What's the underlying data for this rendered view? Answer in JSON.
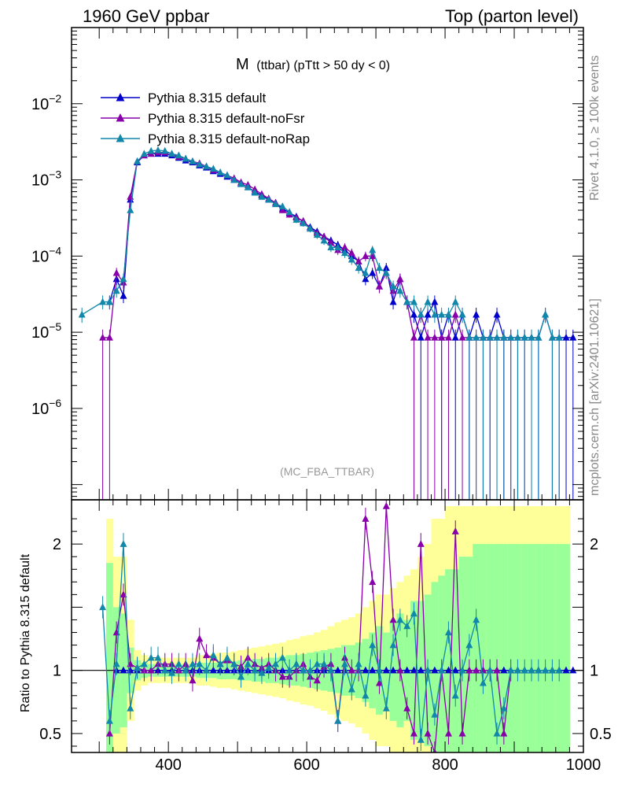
{
  "header": {
    "left": "1960 GeV ppbar",
    "right": "Top (parton level)"
  },
  "side_labels": {
    "rivet": "Rivet 4.1.0, ≥ 100k events",
    "mcplots": "mcplots.cern.ch [arXiv:2401.10621]"
  },
  "chart_data": {
    "type": "line",
    "title_main": "M",
    "title_sub": "(ttbar) (pTtt > 50 dy < 0)",
    "analysis_tag": "(MC_FBA_TTBAR)",
    "xlabel": "",
    "xlim": [
      260,
      1000
    ],
    "x_ticks": [
      "400",
      "600",
      "800",
      "1000"
    ],
    "main_ylim_log10": [
      -7.2,
      -1.0
    ],
    "main_y_ticks": [
      {
        "base": "10",
        "exp": "−2",
        "log": -2
      },
      {
        "base": "10",
        "exp": "−3",
        "log": -3
      },
      {
        "base": "10",
        "exp": "−4",
        "log": -4
      },
      {
        "base": "10",
        "exp": "−5",
        "log": -5
      },
      {
        "base": "10",
        "exp": "−6",
        "log": -6
      }
    ],
    "ratio_ylabel": "Ratio to Pythia 8.315 default",
    "ratio_ylim": [
      0.35,
      2.35
    ],
    "ratio_y_ticks": [
      "2",
      "1",
      "0.5"
    ],
    "series": [
      {
        "name": "Pythia 8.315 default",
        "color": "#0000cc",
        "x": [
          305,
          315,
          325,
          335,
          345,
          355,
          365,
          375,
          385,
          395,
          405,
          415,
          425,
          435,
          445,
          455,
          465,
          475,
          485,
          495,
          505,
          515,
          525,
          535,
          545,
          555,
          565,
          575,
          585,
          595,
          605,
          615,
          625,
          635,
          645,
          655,
          665,
          675,
          685,
          695,
          705,
          715,
          725,
          735,
          745,
          755,
          765,
          775,
          785,
          795,
          805,
          815,
          825,
          835,
          845,
          855,
          865,
          875,
          885,
          895,
          905,
          915,
          925,
          935,
          945,
          955,
          965,
          975,
          985
        ],
        "y": [
          null,
          2.5e-05,
          5e-05,
          3e-05,
          0.00055,
          0.0017,
          0.0021,
          0.0022,
          0.0022,
          0.0022,
          0.0021,
          0.00195,
          0.0018,
          0.0017,
          0.00155,
          0.00145,
          0.0013,
          0.0012,
          0.0011,
          0.001,
          0.0009,
          0.0008,
          0.0007,
          0.00063,
          0.00055,
          0.0005,
          0.00042,
          0.00037,
          0.00033,
          0.00028,
          0.00024,
          0.00021,
          0.00018,
          0.00016,
          0.00014,
          0.00012,
          0.0001,
          8.5e-05,
          5e-05,
          6e-05,
          4e-05,
          7e-05,
          2.5e-05,
          5e-05,
          2.5e-05,
          1.7e-05,
          8.5e-06,
          1.7e-05,
          2.5e-05,
          8.5e-06,
          1.7e-05,
          8.5e-06,
          1.7e-05,
          8.5e-06,
          1.7e-05,
          8.5e-06,
          8.5e-06,
          1.7e-05,
          8.5e-06,
          8.5e-06,
          8.5e-06,
          8.5e-06,
          8.5e-06,
          8.5e-06,
          1.7e-05,
          8.5e-06,
          8.5e-06,
          8.5e-06,
          8.5e-06
        ],
        "ratio": [
          null,
          null,
          1.0,
          1.0,
          1.0,
          1.0,
          1.0,
          1.0,
          1.0,
          1.0,
          1.0,
          1.0,
          1.0,
          1.0,
          1.0,
          1.0,
          1.0,
          1.0,
          1.0,
          1.0,
          1.0,
          1.0,
          1.0,
          1.0,
          1.0,
          1.0,
          1.0,
          1.0,
          1.0,
          1.0,
          1.0,
          1.0,
          1.0,
          1.0,
          1.0,
          1.0,
          1.0,
          1.0,
          1.0,
          1.0,
          1.0,
          1.0,
          1.0,
          1.0,
          1.0,
          1.0,
          1.0,
          1.0,
          1.0,
          1.0,
          1.0,
          1.0,
          1.0,
          1.0,
          1.0,
          1.0,
          1.0,
          1.0,
          1.0,
          1.0,
          1.0,
          1.0,
          1.0,
          1.0,
          1.0,
          1.0,
          1.0,
          1.0,
          1.0
        ]
      },
      {
        "name": "Pythia 8.315 default-noFsr",
        "color": "#8800aa",
        "x": [
          305,
          315,
          325,
          335,
          345,
          355,
          365,
          375,
          385,
          395,
          405,
          415,
          425,
          435,
          445,
          455,
          465,
          475,
          485,
          495,
          505,
          515,
          525,
          535,
          545,
          555,
          565,
          575,
          585,
          595,
          605,
          615,
          625,
          635,
          645,
          655,
          665,
          675,
          685,
          695,
          705,
          715,
          725,
          735,
          745,
          755,
          765,
          775,
          785,
          795,
          805,
          815,
          825,
          835,
          845,
          855,
          865,
          875,
          885,
          895
        ],
        "y": [
          8.5e-06,
          8.5e-06,
          6e-05,
          4.5e-05,
          0.0006,
          0.00175,
          0.0021,
          0.0022,
          0.0023,
          0.0023,
          0.0022,
          0.002,
          0.0019,
          0.00175,
          0.00165,
          0.0015,
          0.00135,
          0.00125,
          0.00115,
          0.00105,
          0.00093,
          0.00086,
          0.00075,
          0.00065,
          0.00057,
          0.0005,
          0.0004,
          0.00035,
          0.00032,
          0.00029,
          0.00023,
          0.0002,
          0.00018,
          0.00015,
          0.00012,
          0.00013,
          0.00011,
          8.5e-05,
          0.0001,
          0.0001,
          4e-05,
          6e-05,
          3.5e-05,
          5e-05,
          2.5e-05,
          8.5e-06,
          1.7e-05,
          8.5e-06,
          8.5e-06,
          8.5e-06,
          8.5e-06,
          1.7e-05,
          8.5e-06,
          8.5e-06,
          8.5e-06,
          8.5e-06,
          8.5e-06,
          8.5e-06,
          8.5e-06,
          8.5e-06
        ],
        "ratio": [
          null,
          0.5,
          1.3,
          1.6,
          1.05,
          1.02,
          1.0,
          1.0,
          1.05,
          1.05,
          1.05,
          1.0,
          1.05,
          0.92,
          1.25,
          1.12,
          1.1,
          1.05,
          1.08,
          1.05,
          1.03,
          1.1,
          1.05,
          1.02,
          1.05,
          1.0,
          0.95,
          0.95,
          1.0,
          1.05,
          0.95,
          0.92,
          1.03,
          1.05,
          0.6,
          1.1,
          1.0,
          1.0,
          2.2,
          1.7,
          0.9,
          2.3,
          1.4,
          1.0,
          0.7,
          0.5,
          2.0,
          0.5,
          0.35,
          1.0,
          0.5,
          2.1,
          0.5,
          1.0,
          1.0,
          1.0,
          1.0,
          1.0,
          0.5,
          1.0
        ]
      },
      {
        "name": "Pythia 8.315 default-noRap",
        "color": "#1188aa",
        "x": [
          275,
          305,
          315,
          325,
          335,
          345,
          355,
          365,
          375,
          385,
          395,
          405,
          415,
          425,
          435,
          445,
          455,
          465,
          475,
          485,
          495,
          505,
          515,
          525,
          535,
          545,
          555,
          565,
          575,
          585,
          595,
          605,
          615,
          625,
          635,
          645,
          655,
          665,
          675,
          685,
          695,
          705,
          715,
          725,
          735,
          745,
          755,
          765,
          775,
          785,
          795,
          805,
          815,
          825,
          835,
          845,
          855,
          865,
          875,
          885,
          895,
          905,
          915,
          925,
          935,
          945,
          955,
          965
        ],
        "y": [
          1.7e-05,
          2.5e-05,
          2.5e-05,
          3.5e-05,
          5e-05,
          0.0004,
          0.00175,
          0.0022,
          0.0024,
          0.00245,
          0.0024,
          0.0022,
          0.0021,
          0.0019,
          0.00175,
          0.0016,
          0.0015,
          0.0014,
          0.00125,
          0.00115,
          0.001,
          0.00088,
          0.0008,
          0.00068,
          0.0006,
          0.00055,
          0.00048,
          0.00045,
          0.00038,
          0.0003,
          0.00027,
          0.00023,
          0.00019,
          0.00016,
          0.00013,
          0.00013,
          0.00011,
          9e-05,
          7e-05,
          6e-05,
          0.00012,
          7e-05,
          6e-05,
          4e-05,
          3.5e-05,
          2.5e-05,
          2.5e-05,
          1.7e-05,
          2.5e-05,
          1.7e-05,
          1.7e-05,
          1.7e-05,
          2.5e-05,
          1.7e-05,
          8.5e-06,
          8.5e-06,
          8.5e-06,
          8.5e-06,
          8.5e-06,
          8.5e-06,
          8.5e-06,
          8.5e-06,
          8.5e-06,
          8.5e-06,
          8.5e-06,
          1.7e-05,
          8.5e-06,
          8.5e-06
        ],
        "ratio": [
          null,
          1.5,
          0.6,
          1.05,
          2.0,
          0.7,
          1.02,
          1.05,
          1.1,
          1.1,
          1.0,
          0.98,
          1.05,
          1.0,
          1.05,
          1.05,
          1.0,
          1.12,
          1.05,
          1.1,
          1.05,
          0.95,
          1.05,
          1.0,
          0.98,
          1.02,
          1.05,
          1.1,
          1.0,
          1.05,
          1.0,
          1.0,
          1.05,
          1.05,
          1.0,
          0.6,
          1.05,
          0.85,
          1.05,
          0.8,
          1.2,
          1.0,
          0.7,
          1.2,
          1.4,
          1.35,
          1.45,
          0.45,
          1.0,
          0.65,
          1.0,
          1.3,
          0.8,
          1.0,
          1.2,
          1.4,
          0.9,
          1.0,
          0.5,
          0.7,
          1.0,
          1.0,
          1.0,
          1.0,
          1.0,
          1.0,
          1.0,
          1.0
        ]
      }
    ],
    "uncertainty_band": {
      "x_edges": [
        300,
        310,
        320,
        330,
        340,
        350,
        360,
        370,
        380,
        390,
        400,
        410,
        420,
        430,
        440,
        450,
        460,
        470,
        480,
        490,
        500,
        510,
        520,
        530,
        540,
        550,
        560,
        570,
        580,
        590,
        600,
        610,
        620,
        630,
        640,
        650,
        660,
        670,
        680,
        690,
        700,
        710,
        720,
        730,
        740,
        750,
        760,
        770,
        780,
        790,
        800,
        810,
        820,
        830,
        840,
        850,
        860,
        870,
        880,
        890,
        900,
        910,
        920,
        930,
        940,
        950,
        960,
        970,
        980
      ],
      "green_halfwidth": [
        0,
        0.85,
        0.5,
        0.45,
        0.18,
        0.08,
        0.06,
        0.05,
        0.05,
        0.05,
        0.05,
        0.05,
        0.05,
        0.05,
        0.06,
        0.06,
        0.06,
        0.07,
        0.07,
        0.07,
        0.08,
        0.08,
        0.09,
        0.09,
        0.1,
        0.1,
        0.11,
        0.12,
        0.12,
        0.13,
        0.14,
        0.15,
        0.16,
        0.17,
        0.18,
        0.2,
        0.2,
        0.22,
        0.25,
        0.3,
        0.35,
        0.3,
        0.4,
        0.45,
        0.4,
        0.55,
        0.55,
        0.6,
        0.7,
        0.75,
        0.8,
        0.8,
        0.9,
        0.9,
        1.0,
        1.0,
        1.0,
        1.0,
        1.0,
        1.0,
        1.0,
        1.0,
        1.0,
        1.0,
        1.0,
        1.0,
        1.0,
        1.0
      ],
      "yellow_halfwidth": [
        0,
        1.2,
        0.9,
        0.9,
        0.4,
        0.16,
        0.12,
        0.1,
        0.1,
        0.1,
        0.1,
        0.1,
        0.1,
        0.1,
        0.12,
        0.12,
        0.13,
        0.14,
        0.14,
        0.15,
        0.16,
        0.17,
        0.18,
        0.19,
        0.2,
        0.21,
        0.22,
        0.24,
        0.25,
        0.27,
        0.28,
        0.3,
        0.32,
        0.35,
        0.38,
        0.4,
        0.42,
        0.45,
        0.5,
        0.55,
        0.6,
        0.6,
        0.65,
        0.7,
        0.75,
        0.8,
        0.9,
        1.0,
        1.2,
        1.2,
        1.3,
        1.3,
        1.3,
        1.3,
        1.3,
        1.3,
        1.3,
        1.3,
        1.3,
        1.3,
        1.3,
        1.3,
        1.3,
        1.3,
        1.3,
        1.3,
        1.3,
        1.3
      ]
    }
  }
}
